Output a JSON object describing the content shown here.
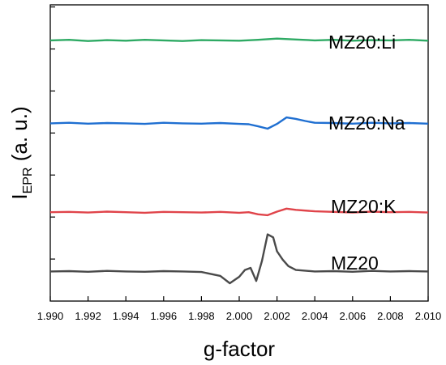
{
  "chart_data": {
    "type": "line",
    "xlabel": "g-factor",
    "ylabel_main": "I",
    "ylabel_sub": "EPR",
    "ylabel_rest": " (a. u.)",
    "xlim": [
      1.99,
      2.01
    ],
    "ylim": [
      0,
      10
    ],
    "xticks": [
      "1.990",
      "1.992",
      "1.994",
      "1.996",
      "1.998",
      "2.000",
      "2.002",
      "2.004",
      "2.006",
      "2.008",
      "2.010"
    ],
    "y_tick_count": 7,
    "grid": false,
    "series": [
      {
        "name": "MZ20:Li",
        "color": "#2eaa64",
        "x": [
          1.99,
          1.991,
          1.992,
          1.993,
          1.994,
          1.995,
          1.996,
          1.997,
          1.998,
          1.999,
          2.0,
          2.001,
          2.002,
          2.003,
          2.004,
          2.005,
          2.006,
          2.007,
          2.008,
          2.009,
          2.01
        ],
        "y": [
          8.8,
          8.82,
          8.78,
          8.81,
          8.79,
          8.82,
          8.8,
          8.78,
          8.81,
          8.8,
          8.79,
          8.82,
          8.86,
          8.83,
          8.8,
          8.82,
          8.79,
          8.81,
          8.8,
          8.82,
          8.79
        ]
      },
      {
        "name": "MZ20:Na",
        "color": "#1f6fd1",
        "x": [
          1.99,
          1.991,
          1.992,
          1.993,
          1.994,
          1.995,
          1.996,
          1.997,
          1.998,
          1.999,
          2.0,
          2.0005,
          2.001,
          2.0015,
          2.002,
          2.0025,
          2.003,
          2.0035,
          2.004,
          2.005,
          2.006,
          2.007,
          2.008,
          2.009,
          2.01
        ],
        "y": [
          6.0,
          6.02,
          5.99,
          6.01,
          6.0,
          5.98,
          6.02,
          6.0,
          5.99,
          6.01,
          5.98,
          5.97,
          5.9,
          5.82,
          5.98,
          6.2,
          6.15,
          6.08,
          6.02,
          6.01,
          5.99,
          6.02,
          6.0,
          6.01,
          5.99
        ]
      },
      {
        "name": "MZ20:K",
        "color": "#e0444a",
        "x": [
          1.99,
          1.991,
          1.992,
          1.993,
          1.994,
          1.995,
          1.996,
          1.997,
          1.998,
          1.999,
          2.0,
          2.0005,
          2.001,
          2.0015,
          2.002,
          2.0025,
          2.003,
          2.004,
          2.005,
          2.006,
          2.007,
          2.008,
          2.009,
          2.01
        ],
        "y": [
          3.0,
          3.01,
          2.99,
          3.02,
          3.0,
          2.98,
          3.01,
          3.0,
          2.99,
          3.01,
          2.98,
          3.0,
          2.93,
          2.9,
          3.02,
          3.12,
          3.08,
          3.03,
          3.01,
          2.99,
          3.02,
          3.0,
          3.01,
          2.99
        ],
        "y_offset_note": ""
      },
      {
        "name": "MZ20",
        "color": "#4a4a4a",
        "x": [
          1.99,
          1.991,
          1.992,
          1.993,
          1.994,
          1.995,
          1.996,
          1.997,
          1.998,
          1.999,
          1.9995,
          2.0,
          2.0003,
          2.0006,
          2.0009,
          2.0012,
          2.0015,
          2.0018,
          2.002,
          2.0023,
          2.0026,
          2.003,
          2.004,
          2.005,
          2.006,
          2.007,
          2.008,
          2.009,
          2.01
        ],
        "y": [
          1.0,
          1.01,
          0.99,
          1.02,
          1.0,
          0.99,
          1.01,
          1.0,
          0.98,
          0.85,
          0.6,
          0.82,
          1.05,
          1.12,
          0.68,
          1.35,
          2.25,
          2.15,
          1.68,
          1.4,
          1.18,
          1.05,
          1.0,
          1.01,
          0.99,
          1.02,
          1.0,
          1.01,
          1.0
        ]
      }
    ]
  }
}
